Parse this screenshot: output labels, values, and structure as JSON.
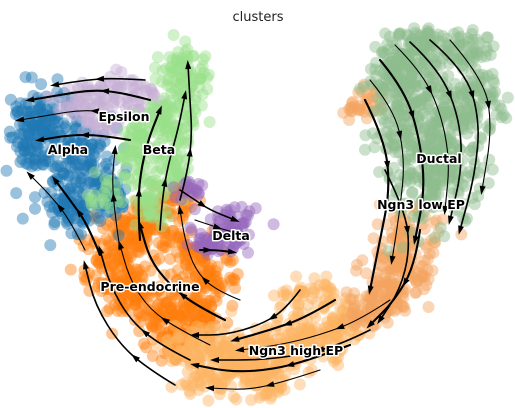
{
  "chart_data": {
    "type": "scatter",
    "title": "clusters",
    "xlabel": "",
    "ylabel": "",
    "axes_visible": false,
    "grid": false,
    "legend": "on data",
    "overlay": "velocity streamlines with arrowheads",
    "clusters": [
      {
        "name": "Ductal",
        "color": "#8fbc8f"
      },
      {
        "name": "Ngn3 low EP",
        "color": "#f4a460"
      },
      {
        "name": "Ngn3 high EP",
        "color": "#fdb462"
      },
      {
        "name": "Pre-endocrine",
        "color": "#ff7f0e"
      },
      {
        "name": "Beta",
        "color": "#98df8a"
      },
      {
        "name": "Alpha",
        "color": "#1f77b4"
      },
      {
        "name": "Delta",
        "color": "#9467bd"
      },
      {
        "name": "Epsilon",
        "color": "#c5b0d5"
      }
    ]
  }
}
